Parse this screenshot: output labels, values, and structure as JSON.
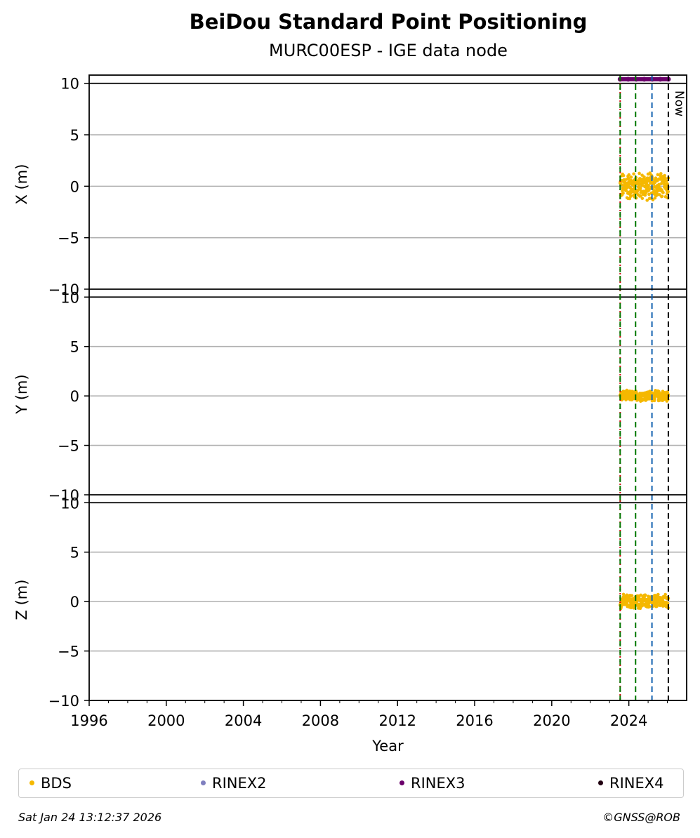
{
  "chart_data": {
    "type": "scatter",
    "title": "BeiDou Standard Point Positioning",
    "subtitle": "MURC00ESP - IGE data node",
    "xlabel": "Year",
    "xlim": [
      1996,
      2027
    ],
    "x_ticks": [
      "1996",
      "2000",
      "2004",
      "2008",
      "2012",
      "2016",
      "2020",
      "2024"
    ],
    "panels": [
      {
        "ylabel": "X (m)",
        "ylim": [
          -10,
          10
        ],
        "y_ticks": [
          "10",
          "5",
          "0",
          "−5",
          "−10"
        ],
        "series": [
          {
            "name": "BDS",
            "x_range": [
              2023.55,
              2026.05
            ],
            "center": 0.0,
            "spread": 1.5
          }
        ]
      },
      {
        "ylabel": "Y (m)",
        "ylim": [
          -10,
          10
        ],
        "y_ticks": [
          "10",
          "5",
          "0",
          "−5",
          "−10"
        ],
        "series": [
          {
            "name": "BDS",
            "x_range": [
              2023.55,
              2026.05
            ],
            "center": 0.0,
            "spread": 0.6
          }
        ]
      },
      {
        "ylabel": "Z (m)",
        "ylim": [
          -10,
          10
        ],
        "y_ticks": [
          "10",
          "5",
          "0",
          "−5",
          "−10"
        ],
        "series": [
          {
            "name": "BDS",
            "x_range": [
              2023.55,
              2026.05
            ],
            "center": 0.0,
            "spread": 0.8
          }
        ]
      }
    ],
    "rinex3_availability": {
      "name": "RINEX3",
      "x_range": [
        2023.55,
        2026.05
      ],
      "y": 10.4
    },
    "vertical_lines": [
      {
        "x": 2023.55,
        "color": "#cc0000",
        "style": "dotted"
      },
      {
        "x": 2023.55,
        "color": "#007700",
        "style": "dashed"
      },
      {
        "x": 2024.35,
        "color": "#007700",
        "style": "dashed"
      },
      {
        "x": 2025.2,
        "color": "#1060b0",
        "style": "dashed"
      },
      {
        "x": 2026.05,
        "color": "#000000",
        "style": "dashed",
        "label": "Now"
      }
    ],
    "grid": "horizontal",
    "legend": {
      "placement": "bottom",
      "items": [
        {
          "label": "BDS",
          "color": "#f5b800"
        },
        {
          "label": "RINEX2",
          "color": "#7f7fbf"
        },
        {
          "label": "RINEX3",
          "color": "#6a006a"
        },
        {
          "label": "RINEX4",
          "color": "#200010"
        }
      ]
    }
  },
  "footer": {
    "timestamp": "Sat Jan 24 13:12:37 2026",
    "credit": "©GNSS@ROB"
  }
}
